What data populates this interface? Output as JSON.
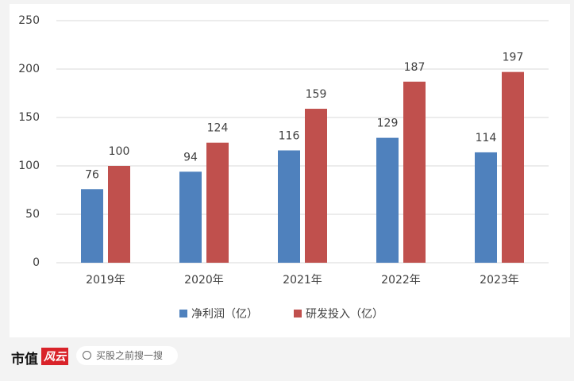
{
  "chart_data": {
    "type": "bar",
    "categories": [
      "2019年",
      "2020年",
      "2021年",
      "2022年",
      "2023年"
    ],
    "series": [
      {
        "name": "净利润（亿）",
        "color": "#4f81bd",
        "values": [
          76,
          94,
          116,
          129,
          114
        ]
      },
      {
        "name": "研发投入（亿）",
        "color": "#c0504d",
        "values": [
          100,
          124,
          159,
          187,
          197
        ]
      }
    ],
    "ylim": [
      0,
      250
    ],
    "yticks": [
      0,
      50,
      100,
      150,
      200,
      250
    ],
    "grid": true,
    "legend": "bottom"
  },
  "footer": {
    "logo": "市值",
    "logo_badge": "风云",
    "search": "买股之前搜一搜"
  }
}
